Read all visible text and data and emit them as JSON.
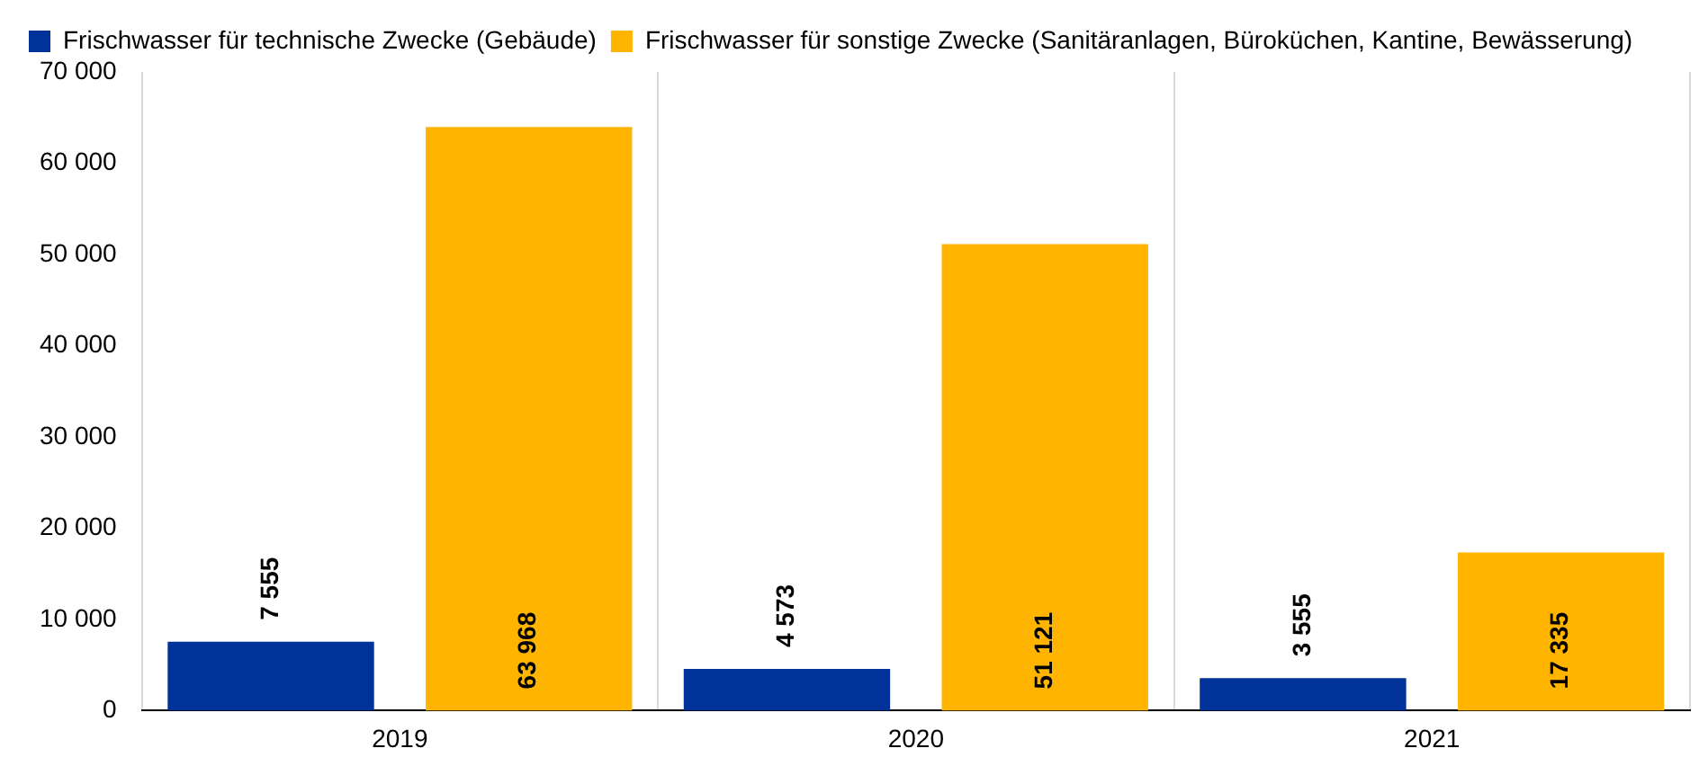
{
  "chart_data": {
    "type": "bar",
    "categories": [
      "2019",
      "2020",
      "2021"
    ],
    "series": [
      {
        "name": "Frischwasser für technische Zwecke (Gebäude)",
        "color": "#003299",
        "values": [
          7555,
          4573,
          3555
        ],
        "value_labels": [
          "7 555",
          "4 573",
          "3 555"
        ]
      },
      {
        "name": "Frischwasser für sonstige Zwecke (Sanitäranlagen, Büroküchen, Kantine, Bewässerung)",
        "color": "#ffb400",
        "values": [
          63968,
          51121,
          17335
        ],
        "value_labels": [
          "63 968",
          "51 121",
          "17 335"
        ]
      }
    ],
    "ylim": [
      0,
      70000
    ],
    "yticks": [
      {
        "value": 0,
        "label": "0"
      },
      {
        "value": 10000,
        "label": "10 000"
      },
      {
        "value": 20000,
        "label": "20 000"
      },
      {
        "value": 30000,
        "label": "30 000"
      },
      {
        "value": 40000,
        "label": "40 000"
      },
      {
        "value": 50000,
        "label": "50 000"
      },
      {
        "value": 60000,
        "label": "60 000"
      },
      {
        "value": 70000,
        "label": "70 000"
      }
    ],
    "grid": "x",
    "legend": "top left"
  }
}
